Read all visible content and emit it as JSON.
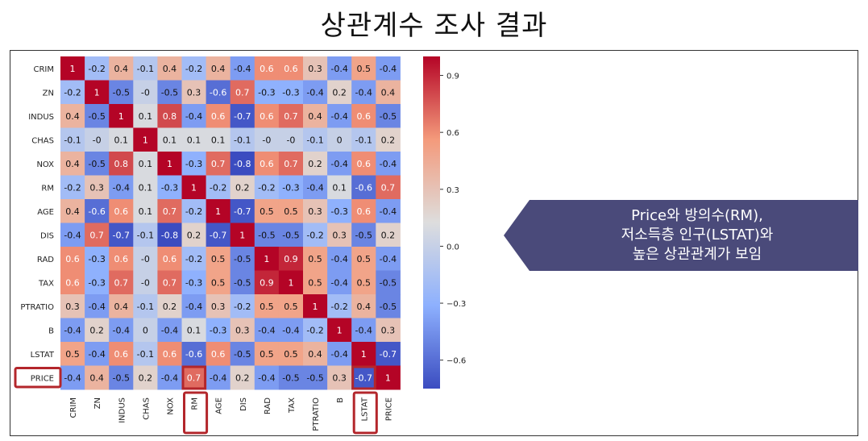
{
  "title": "상관계수 조사 결과",
  "callout": {
    "lines": [
      "Price와 방의수(RM),",
      "저소득층 인구(LSTAT)와",
      "높은 상관관계가 보임"
    ],
    "color": "#4a4a7a"
  },
  "highlights": {
    "color": "#b3262b",
    "row_labels": [
      "PRICE"
    ],
    "column_labels": [
      "RM",
      "LSTAT"
    ],
    "cells": [
      [
        "PRICE",
        "RM"
      ],
      [
        "PRICE",
        "LSTAT"
      ]
    ]
  },
  "chart_data": {
    "type": "heatmap",
    "colormap": "coolwarm",
    "vmin": -0.75,
    "vmax": 1.0,
    "labels": [
      "CRIM",
      "ZN",
      "INDUS",
      "CHAS",
      "NOX",
      "RM",
      "AGE",
      "DIS",
      "RAD",
      "TAX",
      "PTRATIO",
      "B",
      "LSTAT",
      "PRICE"
    ],
    "values": [
      [
        1,
        -0.2,
        0.4,
        -0.1,
        0.4,
        -0.2,
        0.4,
        -0.4,
        0.6,
        0.6,
        0.3,
        -0.4,
        0.5,
        -0.4
      ],
      [
        -0.2,
        1,
        -0.5,
        0,
        -0.5,
        0.3,
        -0.6,
        0.7,
        -0.3,
        -0.3,
        -0.4,
        0.2,
        -0.4,
        0.4
      ],
      [
        0.4,
        -0.5,
        1,
        0.1,
        0.8,
        -0.4,
        0.6,
        -0.7,
        0.6,
        0.7,
        0.4,
        -0.4,
        0.6,
        -0.5
      ],
      [
        -0.1,
        0,
        0.1,
        1,
        0.1,
        0.1,
        0.1,
        -0.1,
        0,
        0,
        -0.1,
        0,
        -0.1,
        0.2
      ],
      [
        0.4,
        -0.5,
        0.8,
        0.1,
        1,
        -0.3,
        0.7,
        -0.8,
        0.6,
        0.7,
        0.2,
        -0.4,
        0.6,
        -0.4
      ],
      [
        -0.2,
        0.3,
        -0.4,
        0.1,
        -0.3,
        1,
        -0.2,
        0.2,
        -0.2,
        -0.3,
        -0.4,
        0.1,
        -0.6,
        0.7
      ],
      [
        0.4,
        -0.6,
        0.6,
        0.1,
        0.7,
        -0.2,
        1,
        -0.7,
        0.5,
        0.5,
        0.3,
        -0.3,
        0.6,
        -0.4
      ],
      [
        -0.4,
        0.7,
        -0.7,
        -0.1,
        -0.8,
        0.2,
        -0.7,
        1,
        -0.5,
        -0.5,
        -0.2,
        0.3,
        -0.5,
        0.2
      ],
      [
        0.6,
        -0.3,
        0.6,
        0,
        0.6,
        -0.2,
        0.5,
        -0.5,
        1,
        0.9,
        0.5,
        -0.4,
        0.5,
        -0.4
      ],
      [
        0.6,
        -0.3,
        0.7,
        0,
        0.7,
        -0.3,
        0.5,
        -0.5,
        0.9,
        1,
        0.5,
        -0.4,
        0.5,
        -0.5
      ],
      [
        0.3,
        -0.4,
        0.4,
        -0.1,
        0.2,
        -0.4,
        0.3,
        -0.2,
        0.5,
        0.5,
        1,
        -0.2,
        0.4,
        -0.5
      ],
      [
        -0.4,
        0.2,
        -0.4,
        0,
        -0.4,
        0.1,
        -0.3,
        0.3,
        -0.4,
        -0.4,
        -0.2,
        1,
        -0.4,
        0.3
      ],
      [
        0.5,
        -0.4,
        0.6,
        -0.1,
        0.6,
        -0.6,
        0.6,
        -0.5,
        0.5,
        0.5,
        0.4,
        -0.4,
        1,
        -0.7
      ],
      [
        -0.4,
        0.4,
        -0.5,
        0.2,
        -0.4,
        0.7,
        -0.4,
        0.2,
        -0.4,
        -0.5,
        -0.5,
        0.3,
        -0.7,
        1
      ]
    ],
    "colorbar_ticks": [
      0.9,
      0.6,
      0.3,
      0.0,
      -0.3,
      -0.6
    ],
    "colorbar_tick_labels": [
      "0.9",
      "0.6",
      "0.3",
      "0.0",
      "−0.3",
      "−0.6"
    ]
  }
}
